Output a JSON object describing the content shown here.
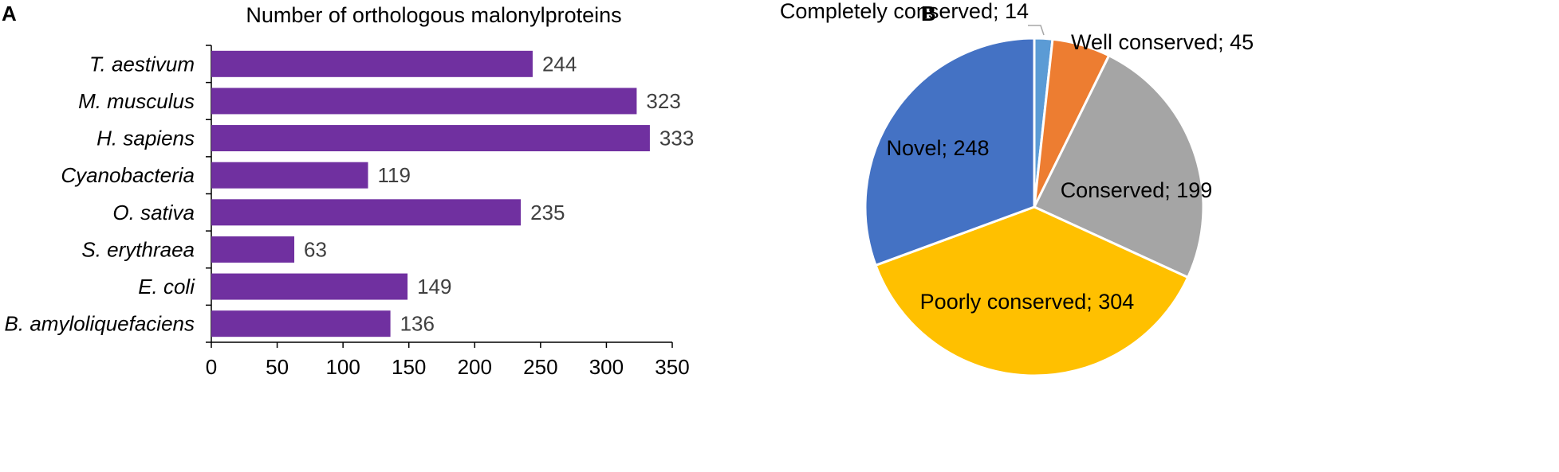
{
  "chart_data": [
    {
      "panel": "A",
      "type": "bar",
      "orientation": "horizontal",
      "title": "Number of orthologous malonylproteins",
      "categories": [
        "T. aestivum",
        "M. musculus",
        "H. sapiens",
        "Cyanobacteria",
        "O. sativa",
        "S. erythraea",
        "E. coli",
        "B. amyloliquefaciens"
      ],
      "values": [
        244,
        323,
        333,
        119,
        235,
        63,
        149,
        136
      ],
      "xlim": [
        0,
        350
      ],
      "xticks": [
        0,
        50,
        100,
        150,
        200,
        250,
        300,
        350
      ],
      "bar_color": "#7030A0",
      "grid": false
    },
    {
      "panel": "B",
      "type": "pie",
      "slices": [
        {
          "label": "Completely conserved; 14",
          "value": 14,
          "color": "#5B9BD5"
        },
        {
          "label": "Well conserved; 45",
          "value": 45,
          "color": "#ED7D31"
        },
        {
          "label": "Conserved; 199",
          "value": 199,
          "color": "#A5A5A5"
        },
        {
          "label": "Poorly conserved; 304",
          "value": 304,
          "color": "#FFC000"
        },
        {
          "label": "Novel; 248",
          "value": 248,
          "color": "#4472C4"
        }
      ]
    }
  ]
}
